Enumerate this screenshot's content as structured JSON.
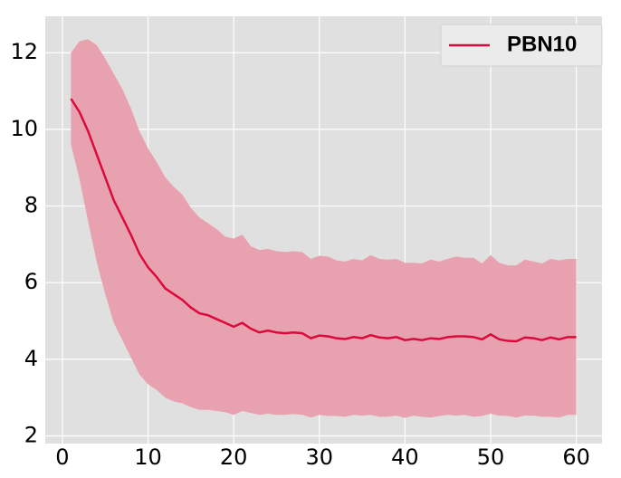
{
  "chart_data": {
    "type": "line",
    "xlim": [
      -2,
      63
    ],
    "ylim": [
      1.8,
      12.95
    ],
    "xticks": [
      0,
      10,
      20,
      30,
      40,
      50,
      60
    ],
    "yticks": [
      2,
      4,
      6,
      8,
      10,
      12
    ],
    "grid": true,
    "legend": "upper right",
    "band_color": "#e8a1ae",
    "series": [
      {
        "name": "PBN10",
        "color": "#dc0a3c",
        "x": [
          1,
          2,
          3,
          4,
          5,
          6,
          7,
          8,
          9,
          10,
          11,
          12,
          13,
          14,
          15,
          16,
          17,
          18,
          19,
          20,
          21,
          22,
          23,
          24,
          25,
          26,
          27,
          28,
          29,
          30,
          31,
          32,
          33,
          34,
          35,
          36,
          37,
          38,
          39,
          40,
          41,
          42,
          43,
          44,
          45,
          46,
          47,
          48,
          49,
          50,
          51,
          52,
          53,
          54,
          55,
          56,
          57,
          58,
          59,
          60
        ],
        "values": [
          10.8,
          10.45,
          9.95,
          9.35,
          8.75,
          8.15,
          7.7,
          7.25,
          6.75,
          6.4,
          6.15,
          5.85,
          5.7,
          5.55,
          5.35,
          5.2,
          5.15,
          5.05,
          4.95,
          4.85,
          4.95,
          4.8,
          4.7,
          4.75,
          4.7,
          4.68,
          4.7,
          4.68,
          4.55,
          4.62,
          4.6,
          4.55,
          4.53,
          4.58,
          4.55,
          4.63,
          4.57,
          4.55,
          4.58,
          4.5,
          4.53,
          4.5,
          4.55,
          4.53,
          4.58,
          4.6,
          4.6,
          4.58,
          4.52,
          4.65,
          4.52,
          4.48,
          4.47,
          4.57,
          4.55,
          4.5,
          4.57,
          4.52,
          4.58,
          4.58
        ],
        "upper": [
          12.0,
          12.3,
          12.35,
          12.2,
          11.85,
          11.45,
          11.05,
          10.55,
          9.95,
          9.5,
          9.15,
          8.75,
          8.5,
          8.3,
          7.95,
          7.7,
          7.55,
          7.4,
          7.2,
          7.15,
          7.25,
          6.95,
          6.85,
          6.88,
          6.82,
          6.8,
          6.82,
          6.8,
          6.62,
          6.7,
          6.68,
          6.58,
          6.55,
          6.62,
          6.58,
          6.72,
          6.62,
          6.6,
          6.62,
          6.52,
          6.52,
          6.5,
          6.6,
          6.55,
          6.62,
          6.68,
          6.65,
          6.65,
          6.5,
          6.72,
          6.52,
          6.45,
          6.45,
          6.6,
          6.55,
          6.5,
          6.62,
          6.58,
          6.62,
          6.62
        ],
        "lower": [
          9.6,
          8.7,
          7.6,
          6.55,
          5.7,
          4.95,
          4.5,
          4.05,
          3.6,
          3.35,
          3.2,
          3.0,
          2.9,
          2.85,
          2.75,
          2.68,
          2.68,
          2.65,
          2.62,
          2.55,
          2.65,
          2.6,
          2.55,
          2.58,
          2.55,
          2.55,
          2.57,
          2.55,
          2.48,
          2.55,
          2.52,
          2.52,
          2.5,
          2.55,
          2.53,
          2.55,
          2.5,
          2.5,
          2.53,
          2.47,
          2.53,
          2.5,
          2.48,
          2.52,
          2.55,
          2.53,
          2.55,
          2.5,
          2.52,
          2.58,
          2.53,
          2.52,
          2.48,
          2.53,
          2.53,
          2.5,
          2.5,
          2.48,
          2.55,
          2.55
        ]
      }
    ]
  }
}
